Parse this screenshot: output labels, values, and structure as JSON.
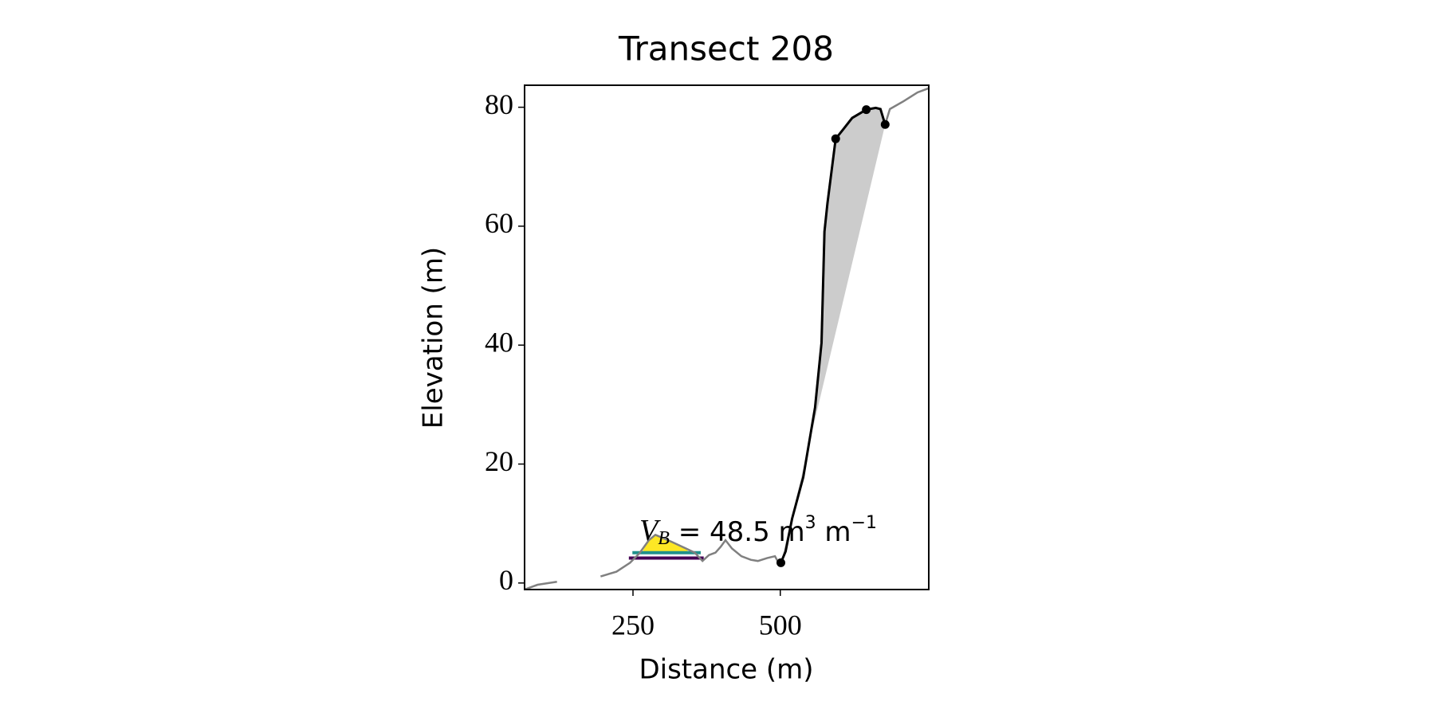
{
  "chart_data": {
    "type": "line",
    "title": "Transect 208",
    "x_label": "Distance (m)",
    "y_label": "Elevation (m)",
    "xlim": [
      66,
      752
    ],
    "ylim": [
      -1.1,
      83.7
    ],
    "xticks": [
      250,
      500
    ],
    "yticks": [
      0,
      20,
      40,
      60,
      80
    ],
    "series": [
      {
        "color": "#808080",
        "x": [
          66,
          88,
          121,
          null,
          195,
          222,
          245,
          261,
          277,
          288,
          300,
          316,
          340,
          355,
          368,
          379,
          390,
          399,
          407,
          418,
          434,
          450,
          462,
          478,
          491,
          497,
          501,
          509,
          520,
          539,
          559,
          570,
          575,
          580,
          594,
          607,
          622,
          646,
          662,
          670,
          678,
          686,
          709,
          733,
          752
        ],
        "values": [
          -1.1,
          -0.3,
          0.2,
          null,
          1.1,
          1.9,
          3.4,
          5.0,
          7.2,
          8.1,
          7.6,
          6.9,
          5.8,
          5.1,
          3.7,
          4.7,
          5.1,
          6.1,
          7.2,
          5.8,
          4.5,
          3.9,
          3.7,
          4.2,
          4.5,
          3.4,
          3.4,
          5.3,
          10.8,
          17.8,
          29.5,
          40.4,
          59.1,
          63.8,
          74.7,
          76.3,
          78.2,
          79.6,
          79.9,
          79.7,
          77.1,
          79.7,
          81.0,
          82.5,
          83.2
        ]
      },
      {
        "color": "#000000",
        "fill": "#cccccc",
        "x": [
          501,
          509,
          520,
          539,
          559,
          570,
          575,
          580,
          594,
          607,
          622,
          646,
          662,
          670,
          678
        ],
        "values": [
          3.4,
          5.3,
          10.8,
          17.8,
          29.5,
          40.4,
          59.1,
          63.8,
          74.7,
          76.3,
          78.2,
          79.6,
          79.9,
          79.7,
          77.1
        ]
      }
    ],
    "points": {
      "color": "#000000",
      "x": [
        501,
        594,
        646,
        678
      ],
      "values": [
        3.4,
        74.7,
        79.6,
        77.1
      ]
    },
    "levels": [
      {
        "color": "#440154",
        "x": [
          243,
          370
        ],
        "value": 4.2
      },
      {
        "color": "#21918c",
        "x": [
          249,
          365
        ],
        "value": 5.1
      }
    ],
    "area": {
      "color": "#fde725",
      "x": [
        265,
        277,
        288,
        300,
        316,
        340,
        345
      ],
      "values": [
        5.1,
        7.2,
        8.1,
        7.6,
        6.9,
        5.8,
        5.1
      ]
    },
    "annotation": [
      {
        "text": "V",
        "style": "italic"
      },
      {
        "text": "B",
        "style": "sub"
      },
      {
        "text": " = 48.5 m",
        "style": "normal"
      },
      {
        "text": "3",
        "style": "sup"
      },
      {
        "text": " m",
        "style": "normal"
      },
      {
        "text": "−1",
        "style": "sup"
      }
    ]
  }
}
